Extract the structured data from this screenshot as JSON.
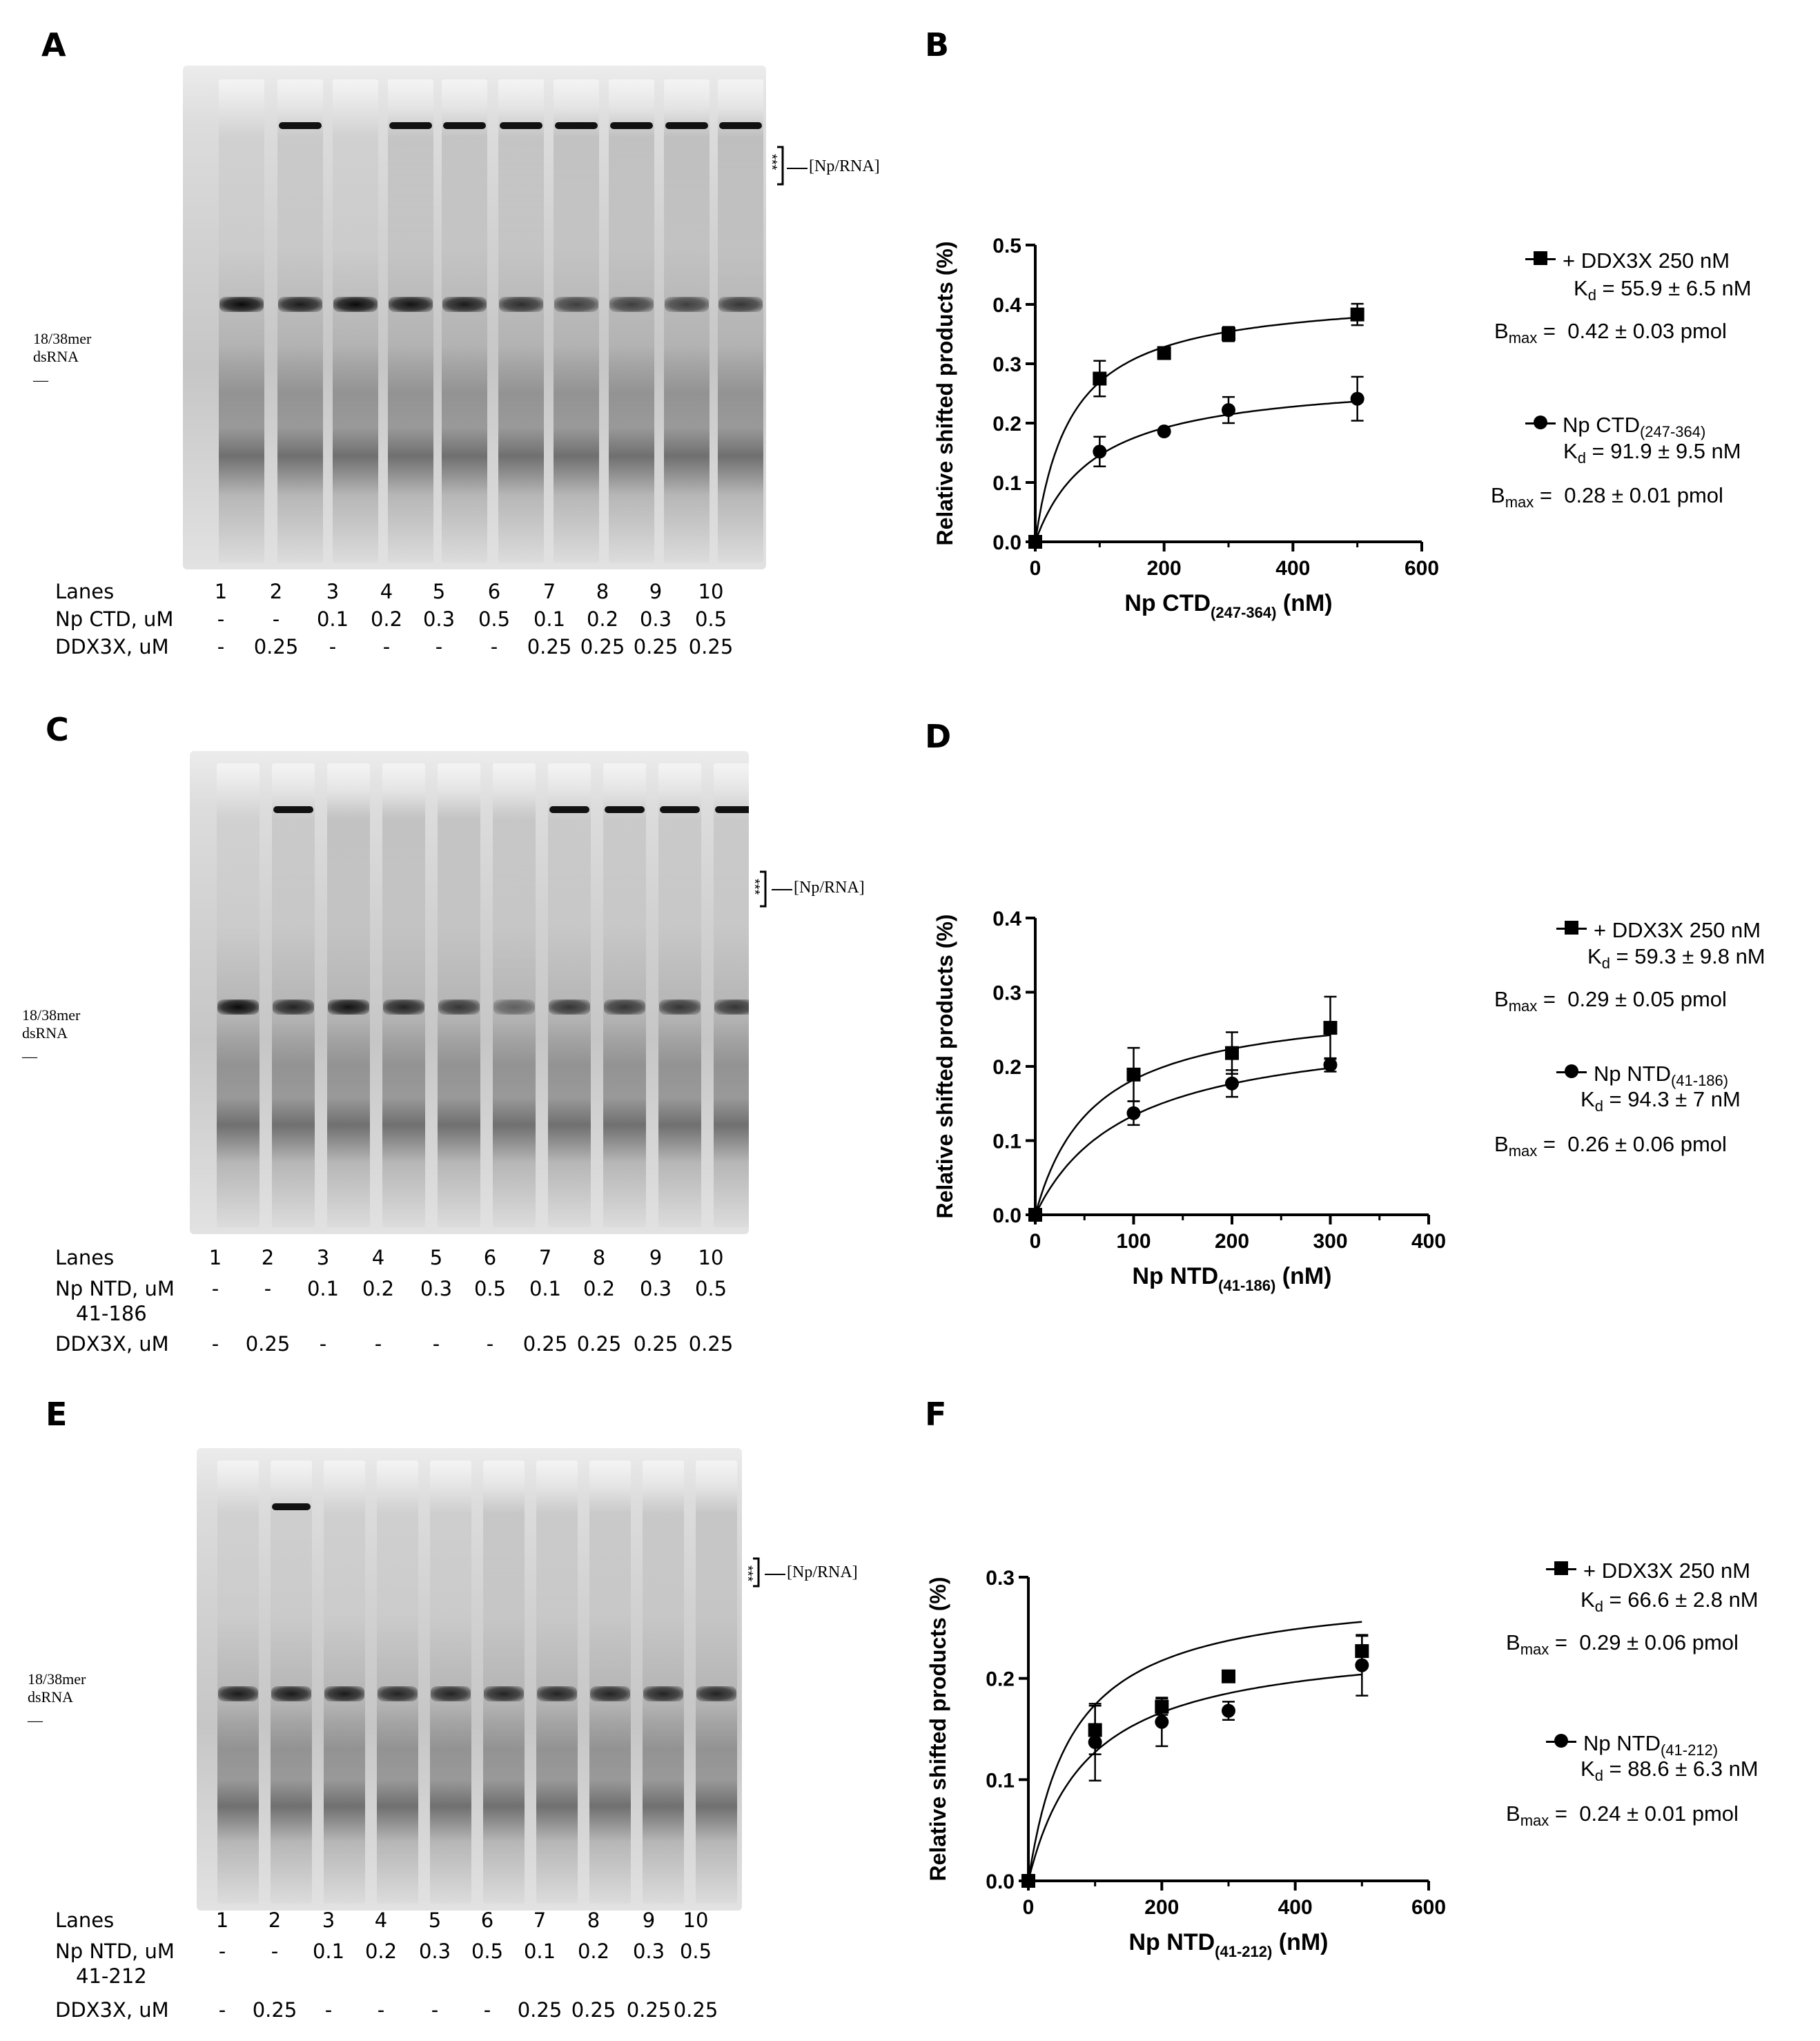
{
  "panels": {
    "A": {
      "letter": "A"
    },
    "B": {
      "letter": "B"
    },
    "C": {
      "letter": "C"
    },
    "D": {
      "letter": "D"
    },
    "E": {
      "letter": "E"
    },
    "F": {
      "letter": "F"
    }
  },
  "gels": [
    {
      "dsrna_label": "18/38mer dsRNA __",
      "complex_label": "[Np/RNA]",
      "stars": "***",
      "rows": [
        {
          "label": "Lanes",
          "values": [
            "1",
            "2",
            "3",
            "4",
            "5",
            "6",
            "7",
            "8",
            "9",
            "10"
          ]
        },
        {
          "label": "Np CTD, uM",
          "values": [
            "-",
            "-",
            "0.1",
            "0.2",
            "0.3",
            "0.5",
            "0.1",
            "0.2",
            "0.3",
            "0.5"
          ]
        },
        {
          "label": "DDX3X, uM",
          "values": [
            "-",
            "0.25",
            "-",
            "-",
            "-",
            "-",
            "0.25",
            "0.25",
            "0.25",
            "0.25"
          ]
        }
      ]
    },
    {
      "dsrna_label": "18/38mer dsRNA __",
      "complex_label": "[Np/RNA]",
      "stars": "***",
      "rows": [
        {
          "label": "Lanes",
          "values": [
            "1",
            "2",
            "3",
            "4",
            "5",
            "6",
            "7",
            "8",
            "9",
            "10"
          ]
        },
        {
          "label": "Np NTD, uM",
          "label2": "41-186",
          "values": [
            "-",
            "-",
            "0.1",
            "0.2",
            "0.3",
            "0.5",
            "0.1",
            "0.2",
            "0.3",
            "0.5"
          ]
        },
        {
          "label": "DDX3X, uM",
          "values": [
            "-",
            "0.25",
            "-",
            "-",
            "-",
            "-",
            "0.25",
            "0.25",
            "0.25",
            "0.25"
          ]
        }
      ]
    },
    {
      "dsrna_label": "18/38mer dsRNA __",
      "complex_label": "[Np/RNA]",
      "stars": "***",
      "rows": [
        {
          "label": "Lanes",
          "values": [
            "1",
            "2",
            "3",
            "4",
            "5",
            "6",
            "7",
            "8",
            "9",
            "10"
          ]
        },
        {
          "label": "Np NTD, uM",
          "label2": "41-212",
          "values": [
            "-",
            "-",
            "0.1",
            "0.2",
            "0.3",
            "0.5",
            "0.1",
            "0.2",
            "0.3",
            "0.5"
          ]
        },
        {
          "label": "DDX3X, uM",
          "values": [
            "-",
            "0.25",
            "-",
            "-",
            "-",
            "-",
            "0.25",
            "0.25",
            "0.25",
            "0.25"
          ]
        }
      ]
    }
  ],
  "legends": [
    {
      "s1": {
        "name": "+ DDX3X 250 nM",
        "kd": "55.9 ± 6.5 nM",
        "bmax": "0.42 ± 0.03 pmol"
      },
      "s2": {
        "name": "Np CTD",
        "sub": "(247-364)",
        "kd": "91.9 ± 9.5 nM",
        "bmax": "0.28 ± 0.01 pmol"
      }
    },
    {
      "s1": {
        "name": "+ DDX3X 250 nM",
        "kd": "59.3 ± 9.8 nM",
        "bmax": "0.29 ± 0.05 pmol"
      },
      "s2": {
        "name": "Np NTD",
        "sub": "(41-186)",
        "kd": "94.3 ± 7 nM",
        "bmax": "0.26 ± 0.06 pmol"
      }
    },
    {
      "s1": {
        "name": "+ DDX3X 250 nM",
        "kd": "66.6 ± 2.8 nM",
        "bmax": "0.29 ± 0.06 pmol"
      },
      "s2": {
        "name": "Np NTD",
        "sub": "(41-212)",
        "kd": "88.6 ± 6.3 nM",
        "bmax": "0.24 ± 0.01 pmol"
      }
    }
  ],
  "legend_common": {
    "kd_prefix": "K",
    "kd_sub": "d",
    "kd_eq": " = ",
    "bmax_prefix": "B",
    "bmax_sub": "max",
    "bmax_eq": " =  "
  },
  "chart_data": [
    {
      "type": "scatter",
      "ylabel": "Relative shifted products (%)",
      "xlabel_main": "Np CTD",
      "xlabel_sub": "(247-364)",
      "xlabel_end": " (nM)",
      "xlim": [
        0,
        600
      ],
      "ylim": [
        0,
        0.5
      ],
      "xticks": [
        0,
        200,
        400,
        600
      ],
      "yticks": [
        0.0,
        0.1,
        0.2,
        0.3,
        0.4,
        0.5
      ],
      "xtick_labels": [
        "0",
        "200",
        "400",
        "600"
      ],
      "ytick_labels": [
        "0.0",
        "0.1",
        "0.2",
        "0.3",
        "0.4",
        "0.5"
      ],
      "series": [
        {
          "name": "+ DDX3X 250 nM",
          "marker": "square",
          "x": [
            0,
            100,
            200,
            300,
            500
          ],
          "y": [
            0.0,
            0.275,
            0.318,
            0.35,
            0.383
          ],
          "err": [
            0,
            0.03,
            0.005,
            0.012,
            0.018
          ],
          "fit": {
            "bmax": 0.42,
            "kd": 55.9
          }
        },
        {
          "name": "Np CTD(247-364)",
          "marker": "circle",
          "x": [
            0,
            100,
            200,
            300,
            500
          ],
          "y": [
            0.0,
            0.152,
            0.186,
            0.222,
            0.241
          ],
          "err": [
            0,
            0.025,
            0.004,
            0.022,
            0.037
          ],
          "fit": {
            "bmax": 0.28,
            "kd": 91.9
          }
        }
      ]
    },
    {
      "type": "scatter",
      "ylabel": "Relative shifted products (%)",
      "xlabel_main": "Np NTD",
      "xlabel_sub": "(41-186)",
      "xlabel_end": " (nM)",
      "xlim": [
        0,
        400
      ],
      "ylim": [
        0,
        0.4
      ],
      "xticks": [
        0,
        100,
        200,
        300,
        400
      ],
      "yticks": [
        0.0,
        0.1,
        0.2,
        0.3,
        0.4
      ],
      "xtick_labels": [
        "0",
        "100",
        "200",
        "300",
        "400"
      ],
      "ytick_labels": [
        "0.0",
        "0.1",
        "0.2",
        "0.3",
        "0.4"
      ],
      "series": [
        {
          "name": "+ DDX3X 250 nM",
          "marker": "square",
          "x": [
            0,
            100,
            200,
            300
          ],
          "y": [
            0.0,
            0.189,
            0.218,
            0.252
          ],
          "err": [
            0,
            0.036,
            0.028,
            0.042
          ],
          "fit": {
            "bmax": 0.29,
            "kd": 59.3
          }
        },
        {
          "name": "Np NTD(41-186)",
          "marker": "circle",
          "x": [
            0,
            100,
            200,
            300
          ],
          "y": [
            0.0,
            0.137,
            0.177,
            0.202
          ],
          "err": [
            0,
            0.016,
            0.018,
            0.009
          ],
          "fit": {
            "bmax": 0.26,
            "kd": 94.3
          }
        }
      ]
    },
    {
      "type": "scatter",
      "ylabel": "Relative shifted products (%)",
      "xlabel_main": "Np NTD",
      "xlabel_sub": "(41-212)",
      "xlabel_end": " (nM)",
      "xlim": [
        0,
        600
      ],
      "ylim": [
        0,
        0.3
      ],
      "xticks": [
        0,
        200,
        400,
        600
      ],
      "yticks": [
        0.0,
        0.1,
        0.2,
        0.3
      ],
      "xtick_labels": [
        "0",
        "200",
        "400",
        "600"
      ],
      "ytick_labels": [
        "0.0",
        "0.1",
        "0.2",
        "0.3"
      ],
      "series": [
        {
          "name": "+ DDX3X 250 nM",
          "marker": "square",
          "x": [
            0,
            100,
            200,
            300,
            500
          ],
          "y": [
            0.0,
            0.149,
            0.172,
            0.202,
            0.227
          ],
          "err": [
            0,
            0.024,
            0.008,
            0.003,
            0.015
          ],
          "fit": {
            "bmax": 0.29,
            "kd": 66.6
          }
        },
        {
          "name": "Np NTD(41-212)",
          "marker": "circle",
          "x": [
            0,
            100,
            200,
            300,
            500
          ],
          "y": [
            0.0,
            0.137,
            0.157,
            0.168,
            0.213
          ],
          "err": [
            0,
            0.038,
            0.024,
            0.009,
            0.03
          ],
          "fit": {
            "bmax": 0.24,
            "kd": 88.6
          }
        }
      ]
    }
  ]
}
